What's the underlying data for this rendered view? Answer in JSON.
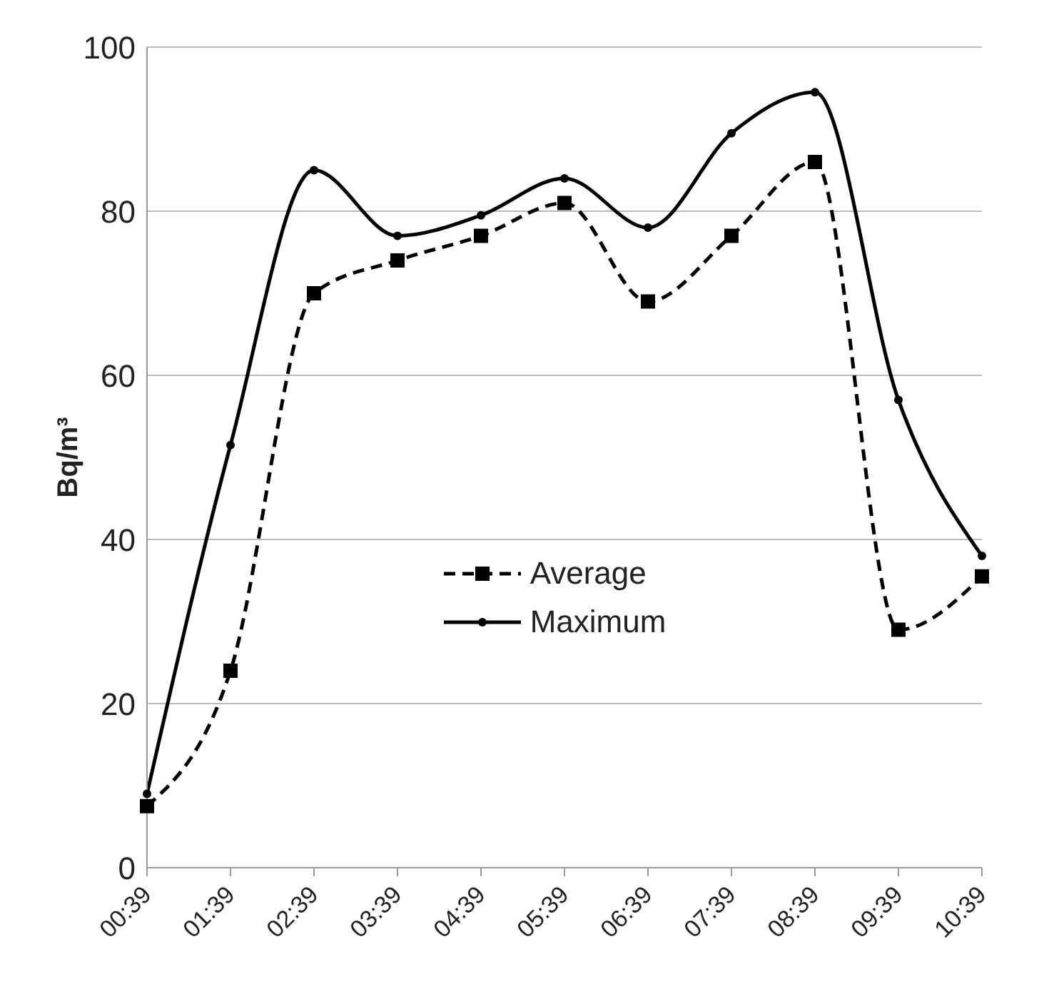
{
  "chart_data": {
    "type": "line",
    "ylabel": "Bq/m³",
    "categories": [
      "00:39",
      "01:39",
      "02:39",
      "03:39",
      "04:39",
      "05:39",
      "06:39",
      "07:39",
      "08:39",
      "09:39",
      "10:39"
    ],
    "series": [
      {
        "name": "Average",
        "color": "#000000",
        "marker": "square",
        "line_style": "dashed",
        "values": [
          7.5,
          24,
          70,
          74,
          77,
          81,
          69,
          77,
          86,
          29,
          35.5
        ]
      },
      {
        "name": "Maximum",
        "color": "#000000",
        "marker": "circle",
        "line_style": "solid",
        "values": [
          9,
          51.5,
          85,
          77,
          79.5,
          84,
          78,
          89.5,
          94.5,
          57,
          38
        ]
      }
    ],
    "ylim": [
      0,
      100
    ],
    "yticks": [
      0,
      20,
      40,
      60,
      80,
      100
    ],
    "grid": "y",
    "legend": "center"
  }
}
